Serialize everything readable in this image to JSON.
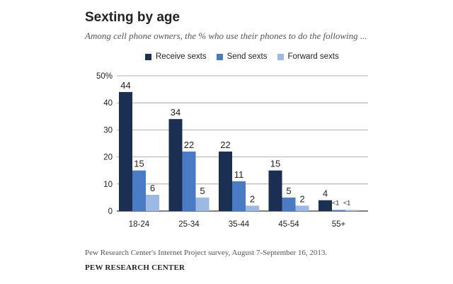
{
  "colors": {
    "receive": "#1b2f53",
    "send": "#4a7cc6",
    "forward": "#9bb9e3",
    "grid": "#999999",
    "text": "#222222"
  },
  "chart_data": {
    "type": "bar",
    "title": "Sexting by age",
    "subtitle": "Among cell phone owners, the % who use their phones to do the following ...",
    "categories": [
      "18-24",
      "25-34",
      "35-44",
      "45-54",
      "55+"
    ],
    "series": [
      {
        "name": "Receive sexts",
        "values": [
          44,
          34,
          22,
          15,
          4
        ],
        "labels": [
          "44",
          "34",
          "22",
          "15",
          "4"
        ]
      },
      {
        "name": "Send sexts",
        "values": [
          15,
          22,
          11,
          5,
          0.4
        ],
        "labels": [
          "15",
          "22",
          "11",
          "5",
          "<1"
        ]
      },
      {
        "name": "Forward sexts",
        "values": [
          6,
          5,
          2,
          2,
          0.4
        ],
        "labels": [
          "6",
          "5",
          "2",
          "2",
          "<1"
        ]
      }
    ],
    "yticks": [
      "0",
      "10",
      "20",
      "30",
      "40",
      "50%"
    ],
    "ylim": [
      0,
      50
    ],
    "grid": true,
    "legend": "top",
    "xlabel": "",
    "ylabel": ""
  },
  "footer": {
    "source": "Pew Research Center's Internet Project survey, August 7-September 16, 2013.",
    "brand": "PEW RESEARCH CENTER"
  }
}
